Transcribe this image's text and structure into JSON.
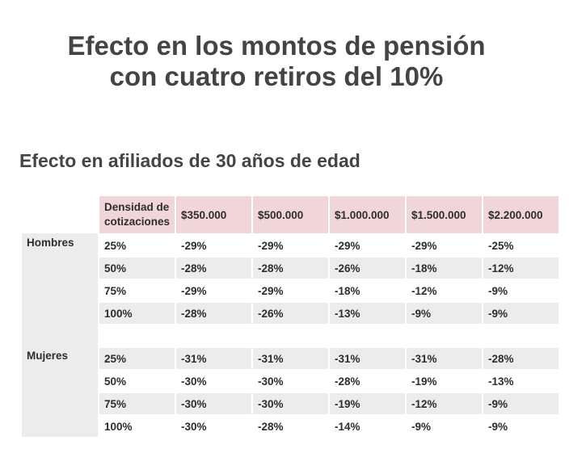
{
  "title": {
    "line1": "Efecto en los montos de pensión",
    "line2": "con cuatro retiros del 10%"
  },
  "subtitle": "Efecto en afiliados de 30 años de edad",
  "table": {
    "headers": [
      "Densidad de cotizaciones",
      "$350.000",
      "$500.000",
      "$1.000.000",
      "$1.500.000",
      "$2.200.000"
    ],
    "header_density_line1": "Densidad de",
    "header_density_line2": "cotizaciones",
    "groups": [
      {
        "label": "Hombres",
        "rows": [
          [
            "25%",
            "-29%",
            "-29%",
            "-29%",
            "-29%",
            "-25%"
          ],
          [
            "50%",
            "-28%",
            "-28%",
            "-26%",
            "-18%",
            "-12%"
          ],
          [
            "75%",
            "-29%",
            "-29%",
            "-18%",
            "-12%",
            "-9%"
          ],
          [
            "100%",
            "-28%",
            "-26%",
            "-13%",
            "-9%",
            "-9%"
          ]
        ]
      },
      {
        "label": "Mujeres",
        "rows": [
          [
            "25%",
            "-31%",
            "-31%",
            "-31%",
            "-31%",
            "-28%"
          ],
          [
            "50%",
            "-30%",
            "-30%",
            "-28%",
            "-19%",
            "-13%"
          ],
          [
            "75%",
            "-30%",
            "-30%",
            "-19%",
            "-12%",
            "-9%"
          ],
          [
            "100%",
            "-30%",
            "-28%",
            "-14%",
            "-9%",
            "-9%"
          ]
        ]
      }
    ]
  },
  "colors": {
    "header_bg": "#f1d6d9",
    "stripe_bg": "#ececec",
    "text": "#2d2d2d"
  }
}
